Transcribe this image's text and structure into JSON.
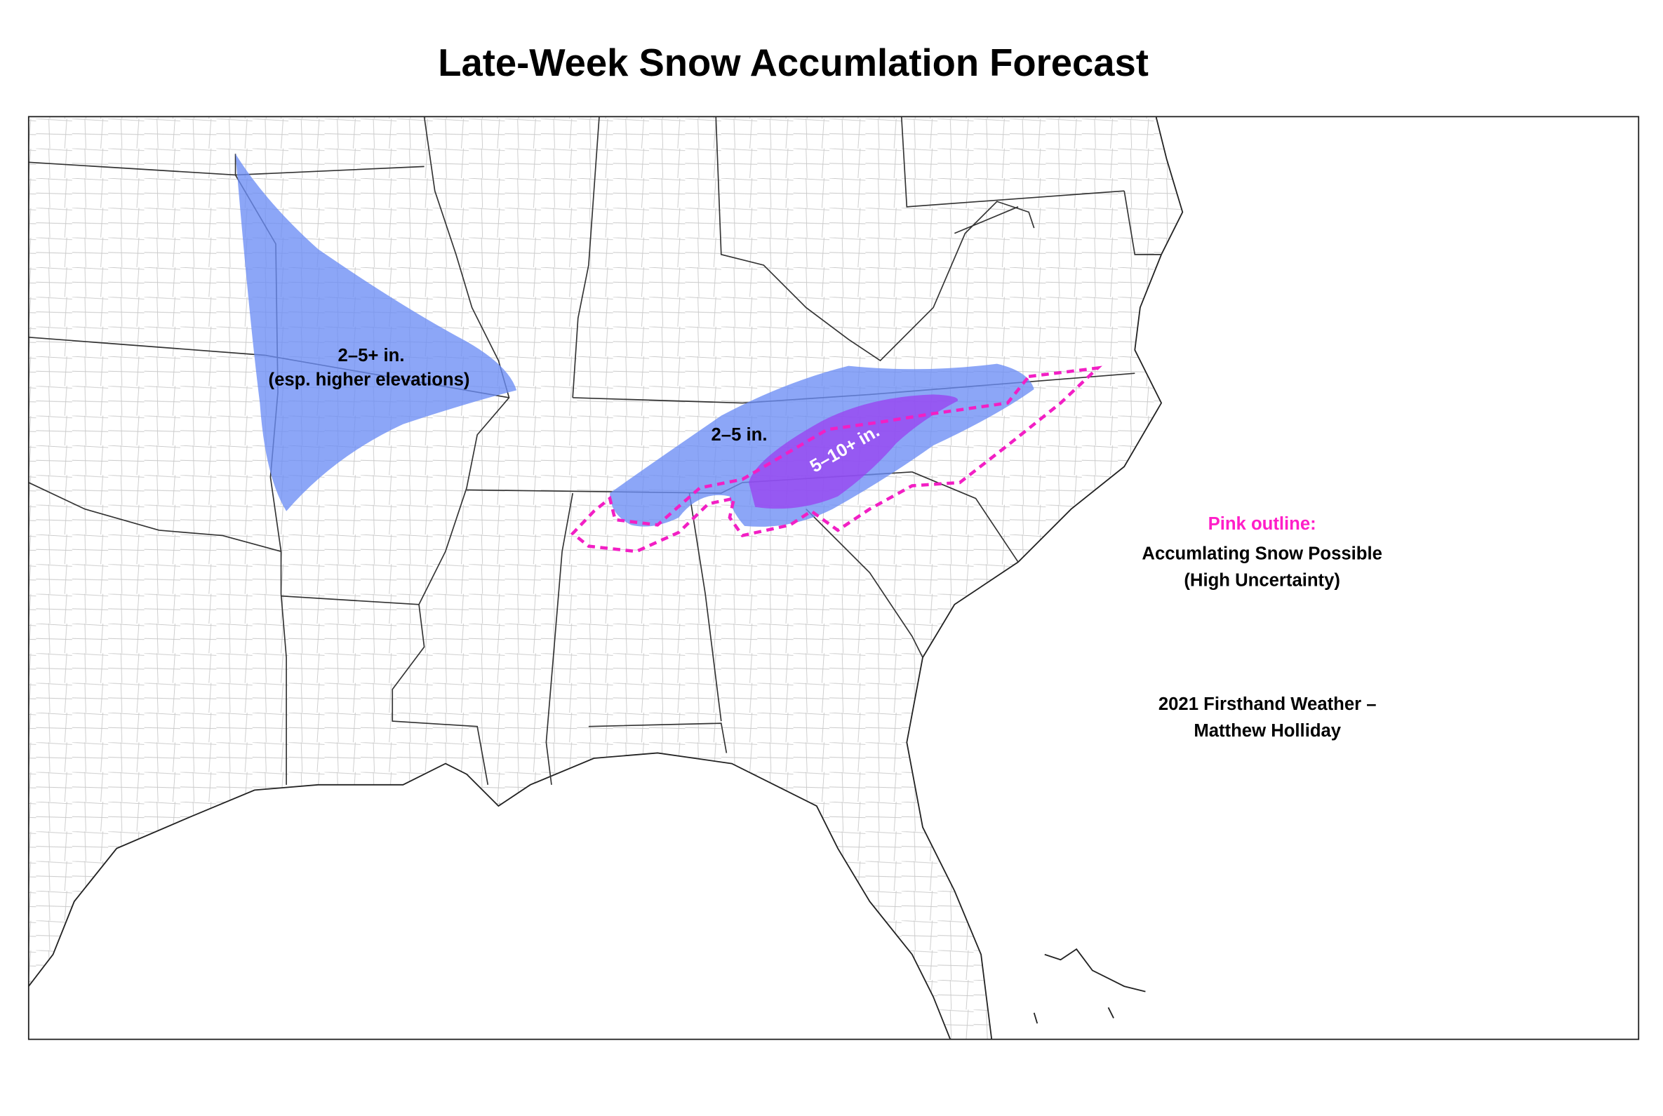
{
  "title": "Late-Week Snow Accumlation Forecast",
  "map": {
    "regions": [
      {
        "label": [
          "2–5+ in.",
          "(esp. higher elevations)"
        ]
      },
      {
        "label": [
          "2–5 in."
        ]
      },
      {
        "label": [
          "5–10+ in."
        ]
      }
    ],
    "legend": {
      "heading": "Pink outline:",
      "lines": [
        "Accumlating Snow Possible",
        "(High Uncertainty)"
      ]
    },
    "credit": [
      "2021 Firsthand Weather –",
      "Matthew Holliday"
    ]
  }
}
